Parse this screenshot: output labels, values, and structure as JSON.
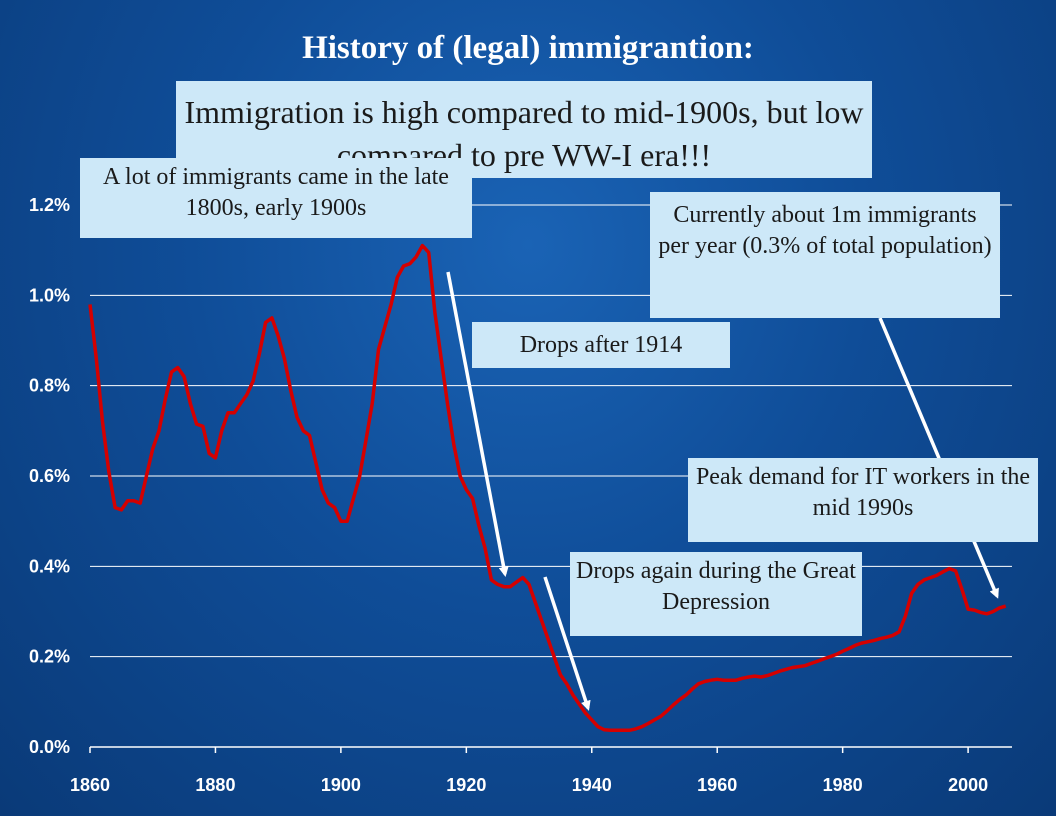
{
  "title": "History of (legal) immigrantion:",
  "annotations": {
    "main": "Immigration is high compared to mid-1900s, but low compared to pre WW-I era!!!",
    "late_1800s": "A lot of immigrants came in the late 1800s, early 1900s",
    "currently": "Currently about 1m immigrants per year (0.3% of total population)",
    "drops_1914": "Drops after 1914",
    "peak_it": "Peak demand for IT workers in the mid 1990s",
    "depression": "Drops again during the Great Depression"
  },
  "colors": {
    "background": "#0f4d98",
    "line": "#d40000",
    "gridline": "#ffffff",
    "callout_fill": "#cde8f8",
    "arrow": "#ffffff"
  },
  "chart_data": {
    "type": "line",
    "title": "History of (legal) immigrantion:",
    "xlabel": "",
    "ylabel": "",
    "xlim": [
      1860,
      2007
    ],
    "ylim": [
      0,
      1.2
    ],
    "y_unit": "%",
    "grid": true,
    "x_ticks": [
      "1860",
      "1880",
      "1900",
      "1920",
      "1940",
      "1960",
      "1980",
      "2000"
    ],
    "y_ticks": [
      "0.0%",
      "0.2%",
      "0.4%",
      "0.6%",
      "0.8%",
      "1.0%",
      "1.2%"
    ],
    "series": [
      {
        "values": [
          [
            1860,
            0.98
          ],
          [
            1861,
            0.86
          ],
          [
            1862,
            0.72
          ],
          [
            1863,
            0.61
          ],
          [
            1864,
            0.53
          ],
          [
            1865,
            0.525
          ],
          [
            1866,
            0.545
          ],
          [
            1867,
            0.545
          ],
          [
            1868,
            0.54
          ],
          [
            1869,
            0.6
          ],
          [
            1870,
            0.66
          ],
          [
            1871,
            0.7
          ],
          [
            1872,
            0.77
          ],
          [
            1873,
            0.83
          ],
          [
            1874,
            0.84
          ],
          [
            1875,
            0.82
          ],
          [
            1876,
            0.76
          ],
          [
            1877,
            0.715
          ],
          [
            1878,
            0.71
          ],
          [
            1879,
            0.65
          ],
          [
            1880,
            0.64
          ],
          [
            1881,
            0.7
          ],
          [
            1882,
            0.74
          ],
          [
            1883,
            0.74
          ],
          [
            1884,
            0.76
          ],
          [
            1885,
            0.78
          ],
          [
            1886,
            0.81
          ],
          [
            1887,
            0.87
          ],
          [
            1888,
            0.94
          ],
          [
            1889,
            0.95
          ],
          [
            1890,
            0.91
          ],
          [
            1891,
            0.86
          ],
          [
            1892,
            0.79
          ],
          [
            1893,
            0.73
          ],
          [
            1894,
            0.7
          ],
          [
            1895,
            0.69
          ],
          [
            1896,
            0.63
          ],
          [
            1897,
            0.57
          ],
          [
            1898,
            0.54
          ],
          [
            1899,
            0.53
          ],
          [
            1900,
            0.5
          ],
          [
            1901,
            0.5
          ],
          [
            1902,
            0.55
          ],
          [
            1903,
            0.6
          ],
          [
            1904,
            0.68
          ],
          [
            1905,
            0.76
          ],
          [
            1906,
            0.88
          ],
          [
            1907,
            0.93
          ],
          [
            1908,
            0.98
          ],
          [
            1909,
            1.04
          ],
          [
            1910,
            1.065
          ],
          [
            1911,
            1.07
          ],
          [
            1912,
            1.085
          ],
          [
            1913,
            1.11
          ],
          [
            1914,
            1.095
          ],
          [
            1915,
            0.96
          ],
          [
            1916,
            0.86
          ],
          [
            1917,
            0.76
          ],
          [
            1918,
            0.67
          ],
          [
            1919,
            0.6
          ],
          [
            1920,
            0.57
          ],
          [
            1921,
            0.55
          ],
          [
            1922,
            0.49
          ],
          [
            1923,
            0.44
          ],
          [
            1924,
            0.37
          ],
          [
            1925,
            0.36
          ],
          [
            1926,
            0.355
          ],
          [
            1927,
            0.355
          ],
          [
            1928,
            0.365
          ],
          [
            1929,
            0.375
          ],
          [
            1930,
            0.36
          ],
          [
            1931,
            0.32
          ],
          [
            1932,
            0.28
          ],
          [
            1933,
            0.24
          ],
          [
            1934,
            0.2
          ],
          [
            1935,
            0.16
          ],
          [
            1936,
            0.14
          ],
          [
            1937,
            0.115
          ],
          [
            1938,
            0.095
          ],
          [
            1939,
            0.075
          ],
          [
            1940,
            0.06
          ],
          [
            1941,
            0.045
          ],
          [
            1942,
            0.038
          ],
          [
            1943,
            0.037
          ],
          [
            1944,
            0.037
          ],
          [
            1945,
            0.037
          ],
          [
            1946,
            0.037
          ],
          [
            1947,
            0.04
          ],
          [
            1948,
            0.045
          ],
          [
            1949,
            0.052
          ],
          [
            1950,
            0.06
          ],
          [
            1951,
            0.068
          ],
          [
            1952,
            0.08
          ],
          [
            1953,
            0.093
          ],
          [
            1954,
            0.105
          ],
          [
            1955,
            0.115
          ],
          [
            1956,
            0.128
          ],
          [
            1957,
            0.14
          ],
          [
            1958,
            0.145
          ],
          [
            1959,
            0.148
          ],
          [
            1960,
            0.15
          ],
          [
            1961,
            0.148
          ],
          [
            1962,
            0.148
          ],
          [
            1963,
            0.148
          ],
          [
            1964,
            0.152
          ],
          [
            1965,
            0.155
          ],
          [
            1966,
            0.157
          ],
          [
            1967,
            0.155
          ],
          [
            1968,
            0.158
          ],
          [
            1969,
            0.163
          ],
          [
            1970,
            0.168
          ],
          [
            1971,
            0.172
          ],
          [
            1972,
            0.176
          ],
          [
            1973,
            0.178
          ],
          [
            1974,
            0.18
          ],
          [
            1975,
            0.185
          ],
          [
            1976,
            0.19
          ],
          [
            1977,
            0.195
          ],
          [
            1978,
            0.2
          ],
          [
            1979,
            0.205
          ],
          [
            1980,
            0.212
          ],
          [
            1981,
            0.218
          ],
          [
            1982,
            0.225
          ],
          [
            1983,
            0.23
          ],
          [
            1984,
            0.233
          ],
          [
            1985,
            0.236
          ],
          [
            1986,
            0.24
          ],
          [
            1987,
            0.243
          ],
          [
            1988,
            0.247
          ],
          [
            1989,
            0.255
          ],
          [
            1990,
            0.29
          ],
          [
            1991,
            0.34
          ],
          [
            1992,
            0.36
          ],
          [
            1993,
            0.37
          ],
          [
            1994,
            0.375
          ],
          [
            1995,
            0.38
          ],
          [
            1996,
            0.388
          ],
          [
            1997,
            0.395
          ],
          [
            1998,
            0.39
          ],
          [
            1999,
            0.35
          ],
          [
            2000,
            0.305
          ],
          [
            2001,
            0.303
          ],
          [
            2002,
            0.298
          ],
          [
            2003,
            0.295
          ],
          [
            2004,
            0.3
          ],
          [
            2005,
            0.308
          ],
          [
            2006,
            0.312
          ]
        ]
      }
    ]
  }
}
